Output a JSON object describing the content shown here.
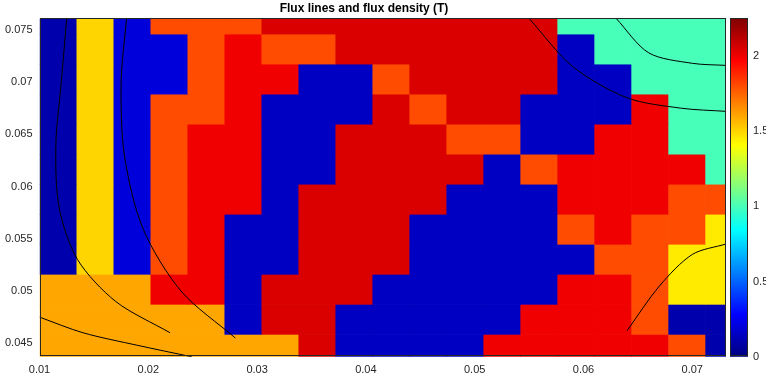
{
  "chart_data": {
    "type": "heatmap",
    "title": "Flux lines and flux density (T)",
    "xlim": [
      0.01,
      0.0731
    ],
    "ylim": [
      0.0437,
      0.0761
    ],
    "xticks": [
      0.01,
      0.02,
      0.03,
      0.04,
      0.05,
      0.06,
      0.07
    ],
    "yticks": [
      0.045,
      0.05,
      0.055,
      0.06,
      0.065,
      0.07,
      0.075
    ],
    "grid": false,
    "x_edges": [
      0.01,
      0.0134,
      0.0168,
      0.0202,
      0.0236,
      0.027,
      0.0304,
      0.0338,
      0.0372,
      0.0406,
      0.044,
      0.0474,
      0.0508,
      0.0542,
      0.0576,
      0.061,
      0.0644,
      0.0678,
      0.0712,
      0.0746
    ],
    "y_edges": [
      0.043,
      0.045875,
      0.04875,
      0.051625,
      0.0545,
      0.057375,
      0.06025,
      0.063125,
      0.066,
      0.068875,
      0.07175,
      0.074625,
      0.0775
    ],
    "cells": [
      [
        1.6,
        1.6,
        1.6,
        1.6,
        1.6,
        1.6,
        1.6,
        2.05,
        0.15,
        0.15,
        0.15,
        0.15,
        2.0,
        2.0,
        2.0,
        2.0,
        2.0,
        1.8,
        0.1
      ],
      [
        1.6,
        1.6,
        1.6,
        1.6,
        1.6,
        0.15,
        2.05,
        2.05,
        0.15,
        0.15,
        0.15,
        0.15,
        0.15,
        2.0,
        2.0,
        2.0,
        1.8,
        0.1,
        0.1
      ],
      [
        1.6,
        1.6,
        1.6,
        2.0,
        2.0,
        0.15,
        2.05,
        2.05,
        2.05,
        0.15,
        0.15,
        0.15,
        0.15,
        0.15,
        2.0,
        2.0,
        1.8,
        1.45,
        1.45
      ],
      [
        0.1,
        1.5,
        0.2,
        1.8,
        2.0,
        0.15,
        0.15,
        2.05,
        2.05,
        2.05,
        0.15,
        0.15,
        0.15,
        0.15,
        0.15,
        1.8,
        1.8,
        1.45,
        1.45
      ],
      [
        0.1,
        1.5,
        0.2,
        1.8,
        2.0,
        0.15,
        0.15,
        2.05,
        2.05,
        2.05,
        0.15,
        0.15,
        0.15,
        0.15,
        1.8,
        2.0,
        1.8,
        1.8,
        1.45
      ],
      [
        0.1,
        1.5,
        0.2,
        1.8,
        2.0,
        2.0,
        0.15,
        2.05,
        2.05,
        2.05,
        2.05,
        0.15,
        0.15,
        0.15,
        2.0,
        2.0,
        2.0,
        1.8,
        1.8
      ],
      [
        0.1,
        1.5,
        0.2,
        1.8,
        2.0,
        2.0,
        0.15,
        0.15,
        2.05,
        2.05,
        2.05,
        2.05,
        0.15,
        1.8,
        2.0,
        2.0,
        2.0,
        2.0,
        1.0
      ],
      [
        0.1,
        1.5,
        0.2,
        1.8,
        2.0,
        2.0,
        0.15,
        0.15,
        2.05,
        2.05,
        2.05,
        1.8,
        1.8,
        0.15,
        0.15,
        2.0,
        2.0,
        1.0,
        1.0
      ],
      [
        0.1,
        1.5,
        0.2,
        1.8,
        1.8,
        2.0,
        0.15,
        0.15,
        0.15,
        2.05,
        1.8,
        2.05,
        2.05,
        0.15,
        0.15,
        0.15,
        2.0,
        1.0,
        1.0
      ],
      [
        0.1,
        1.5,
        0.2,
        0.2,
        1.8,
        2.0,
        2.0,
        0.15,
        0.15,
        1.8,
        2.05,
        2.05,
        2.05,
        2.05,
        0.15,
        0.15,
        1.0,
        1.0,
        1.0
      ],
      [
        0.1,
        1.5,
        0.2,
        0.2,
        1.8,
        2.0,
        1.8,
        1.8,
        2.05,
        2.05,
        2.05,
        2.05,
        2.05,
        2.05,
        0.15,
        1.0,
        1.0,
        1.0,
        1.0
      ],
      [
        0.1,
        1.5,
        0.2,
        1.8,
        1.8,
        1.8,
        2.05,
        2.05,
        2.05,
        2.05,
        2.05,
        2.05,
        2.05,
        2.05,
        1.0,
        1.0,
        1.0,
        1.0,
        1.0
      ]
    ],
    "colorbar": {
      "range": [
        0,
        2.25
      ],
      "ticks": [
        0,
        0.5,
        1,
        1.5,
        2
      ]
    },
    "flux_lines": [
      {
        "color": "#000000",
        "x": [
          0.0125,
          0.012,
          0.0115,
          0.0118,
          0.0135,
          0.017,
          0.022
        ],
        "y": [
          0.0761,
          0.07,
          0.064,
          0.058,
          0.053,
          0.049,
          0.046
        ]
      },
      {
        "color": "#000000",
        "x": [
          0.018,
          0.0175,
          0.0178,
          0.0195,
          0.023,
          0.028
        ],
        "y": [
          0.0761,
          0.07,
          0.063,
          0.056,
          0.05,
          0.0455
        ]
      },
      {
        "color": "#000000",
        "x": [
          0.01,
          0.014,
          0.019,
          0.024
        ],
        "y": [
          0.0475,
          0.046,
          0.0448,
          0.0437
        ]
      },
      {
        "color": "#000000",
        "x": [
          0.055,
          0.059,
          0.064,
          0.069,
          0.0731
        ],
        "y": [
          0.0761,
          0.0715,
          0.0685,
          0.0675,
          0.0672
        ]
      },
      {
        "color": "#000000",
        "x": [
          0.063,
          0.066,
          0.07,
          0.0731
        ],
        "y": [
          0.0761,
          0.0728,
          0.0718,
          0.0716
        ]
      },
      {
        "color": "#000000",
        "x": [
          0.064,
          0.067,
          0.07,
          0.0731
        ],
        "y": [
          0.0462,
          0.0505,
          0.0535,
          0.0545
        ]
      }
    ]
  }
}
